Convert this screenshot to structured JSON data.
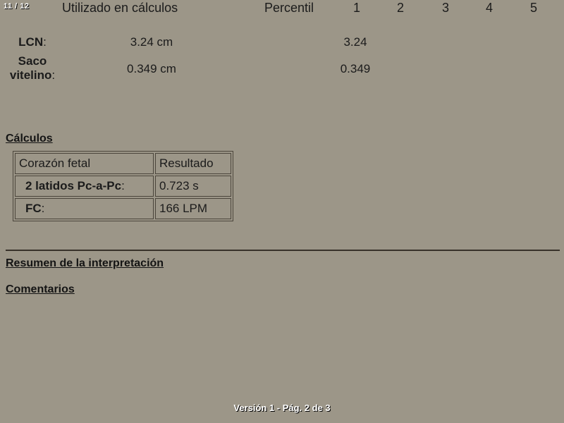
{
  "colors": {
    "background": "#9c9688",
    "text": "#1b1b1b",
    "table_border": "#4b453b",
    "rule": "#38322a",
    "overlay_text": "#ffffff",
    "overlay_shadow": "#000000"
  },
  "overlay": {
    "page_indicator": "11 / 12",
    "footer": "Versión 1 - Pág. 2 de 3"
  },
  "measurements": {
    "used_header": "Utilizado en cálculos",
    "percentile_header": "Percentil",
    "percentile_columns": [
      "1",
      "2",
      "3",
      "4",
      "5"
    ],
    "rows": [
      {
        "label": "LCN",
        "suffix": ":",
        "value": "3.24 cm",
        "percentile_1": "3.24"
      },
      {
        "label": "Saco vitelino",
        "suffix": ":",
        "value": "0.349 cm",
        "percentile_1": "0.349"
      }
    ]
  },
  "calculations": {
    "heading": "Cálculos",
    "table": {
      "col1_header": "Corazón fetal",
      "col2_header": "Resultado",
      "rows": [
        {
          "label": "2 latidos Pc-a-Pc",
          "suffix": ":",
          "value": "0.723 s"
        },
        {
          "label": "FC",
          "suffix": ":",
          "value": "166 LPM"
        }
      ]
    }
  },
  "sections": {
    "interpretation_heading": "Resumen de la interpretación",
    "comments_heading": "Comentarios"
  }
}
